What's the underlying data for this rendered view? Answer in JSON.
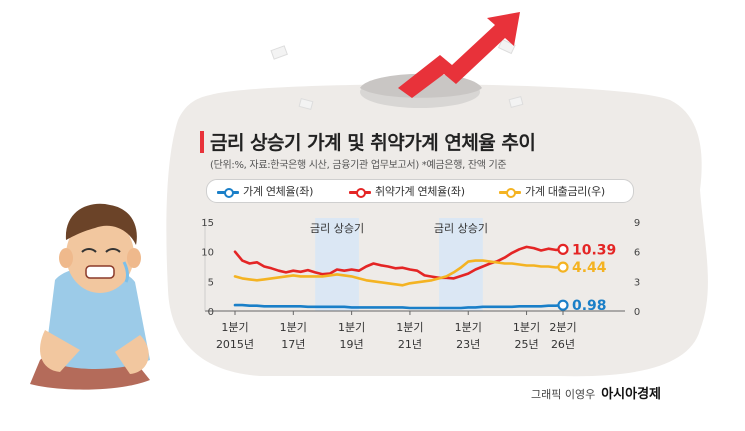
{
  "title": "금리 상승기 가계 및 취약가계 연체율 추이",
  "subtitle": "(단위:%, 자료:한국은행 시산, 금융기관 업무보고서) *예금은행, 잔액 기준",
  "credit_prefix": "그래픽 이영우",
  "credit_brand": "아시아경제",
  "colors": {
    "blue": "#1a7fc8",
    "red": "#e42525",
    "orange": "#f4b322",
    "band": "#dbe7f4",
    "bubble": "#eeebe8"
  },
  "chart_data": {
    "type": "line",
    "title": "금리 상승기 가계 및 취약가계 연체율 추이",
    "x_tick_labels": [
      {
        "q": 0,
        "line1": "1분기",
        "line2": "2015년"
      },
      {
        "q": 8,
        "line1": "1분기",
        "line2": "17년"
      },
      {
        "q": 16,
        "line1": "1분기",
        "line2": "19년"
      },
      {
        "q": 24,
        "line1": "1분기",
        "line2": "21년"
      },
      {
        "q": 32,
        "line1": "1분기",
        "line2": "23년"
      },
      {
        "q": 40,
        "line1": "1분기",
        "line2": "25년"
      },
      {
        "q": 45,
        "line1": "2분기",
        "line2": "26년"
      }
    ],
    "left_axis": {
      "ticks": [
        "0",
        "5",
        "10",
        "15"
      ],
      "range": [
        0,
        15
      ]
    },
    "right_axis": {
      "ticks": [
        "0",
        "3",
        "6",
        "9"
      ],
      "range": [
        0,
        9
      ]
    },
    "bands": [
      {
        "label": "금리 상승기",
        "start_q": 11,
        "end_q": 17
      },
      {
        "label": "금리 상승기",
        "start_q": 28,
        "end_q": 34
      }
    ],
    "series": [
      {
        "name": "가계 연체율(좌)",
        "axis": "left",
        "color": "#1a7fc8",
        "end_label": "0.98",
        "values": [
          1.0,
          1.0,
          0.9,
          0.9,
          0.8,
          0.8,
          0.8,
          0.8,
          0.8,
          0.8,
          0.7,
          0.7,
          0.7,
          0.7,
          0.7,
          0.7,
          0.6,
          0.6,
          0.6,
          0.6,
          0.6,
          0.6,
          0.6,
          0.6,
          0.5,
          0.5,
          0.5,
          0.5,
          0.5,
          0.5,
          0.5,
          0.5,
          0.6,
          0.6,
          0.7,
          0.7,
          0.7,
          0.7,
          0.7,
          0.8,
          0.8,
          0.8,
          0.8,
          0.9,
          0.9,
          0.98
        ]
      },
      {
        "name": "취약가계 연체율(좌)",
        "axis": "left",
        "color": "#e42525",
        "end_label": "10.39",
        "values": [
          10.0,
          8.5,
          8.0,
          8.2,
          7.5,
          7.2,
          6.8,
          6.5,
          6.8,
          6.6,
          6.9,
          6.5,
          6.2,
          6.3,
          7.0,
          6.8,
          7.0,
          6.8,
          7.5,
          8.0,
          7.7,
          7.5,
          7.2,
          7.3,
          7.0,
          6.8,
          6.0,
          5.8,
          5.6,
          5.6,
          5.5,
          5.9,
          6.3,
          7.0,
          7.5,
          8.0,
          8.4,
          9.0,
          9.8,
          10.4,
          10.8,
          10.6,
          10.2,
          10.5,
          10.3,
          10.39
        ]
      },
      {
        "name": "가계 대출금리(우)",
        "axis": "right",
        "color": "#f4b322",
        "end_label": "4.44",
        "values": [
          3.5,
          3.3,
          3.2,
          3.1,
          3.2,
          3.3,
          3.4,
          3.5,
          3.6,
          3.5,
          3.5,
          3.5,
          3.5,
          3.6,
          3.7,
          3.6,
          3.5,
          3.3,
          3.1,
          3.0,
          2.9,
          2.8,
          2.7,
          2.6,
          2.8,
          2.9,
          3.0,
          3.1,
          3.3,
          3.5,
          3.9,
          4.4,
          5.0,
          5.1,
          5.1,
          5.0,
          4.9,
          4.8,
          4.8,
          4.7,
          4.6,
          4.6,
          4.5,
          4.5,
          4.4,
          4.44
        ]
      }
    ]
  }
}
